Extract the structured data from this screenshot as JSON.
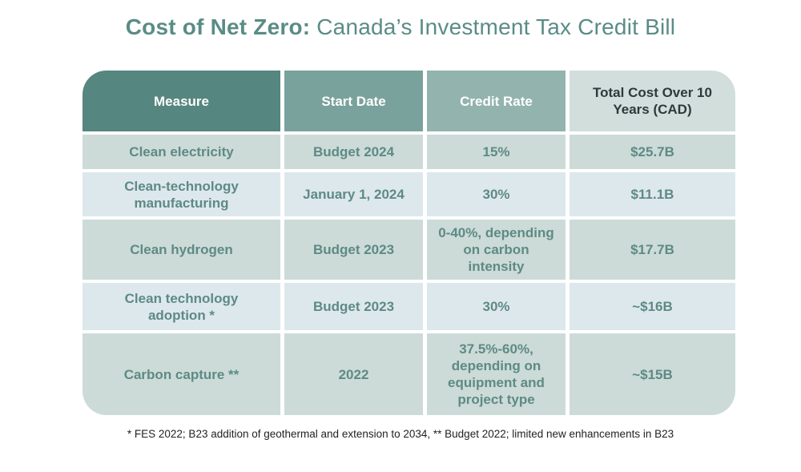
{
  "title": {
    "bold": "Cost of Net Zero:",
    "rest": " Canada’s Investment Tax Credit Bill"
  },
  "chart_data": {
    "type": "table",
    "columns": [
      "Measure",
      "Start Date",
      "Credit Rate",
      "Total Cost Over 10 Years (CAD)"
    ],
    "rows": [
      [
        "Clean electricity",
        "Budget 2024",
        "15%",
        "$25.7B"
      ],
      [
        "Clean-technology manufacturing",
        "January 1, 2024",
        "30%",
        "$11.1B"
      ],
      [
        "Clean hydrogen",
        "Budget 2023",
        "0-40%, depending on carbon intensity",
        "$17.7B"
      ],
      [
        "Clean technology adoption *",
        "Budget 2023",
        "30%",
        "~$16B"
      ],
      [
        "Carbon capture **",
        "2022",
        "37.5%-60%, depending on equipment and project type",
        "~$15B"
      ]
    ]
  },
  "footnote": "* FES 2022; B23 addition of geothermal and extension to 2034, ** Budget 2022; limited new enhancements in B23",
  "colors": {
    "header": [
      "#568680",
      "#7aa29d",
      "#93b3ae",
      "#d2dedc"
    ],
    "row_a": "#ccdbd8",
    "row_b": "#dde8ed"
  }
}
